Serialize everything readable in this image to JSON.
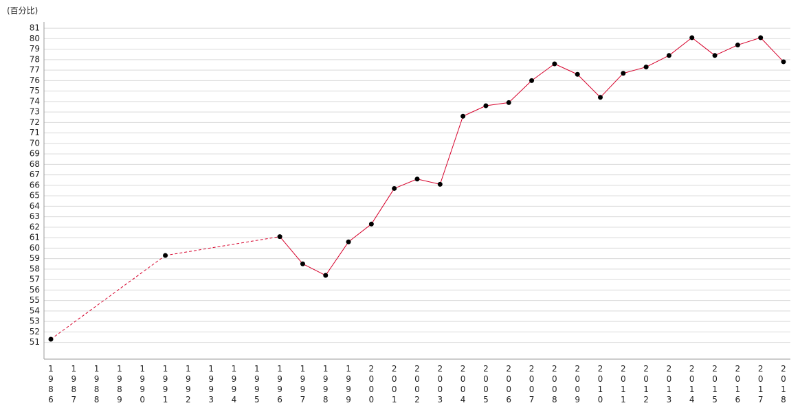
{
  "chart_data": {
    "type": "line",
    "y_label": "(百分比)",
    "categories": [
      "1986",
      "1987",
      "1988",
      "1989",
      "1990",
      "1991",
      "1992",
      "1993",
      "1994",
      "1995",
      "1996",
      "1997",
      "1998",
      "1999",
      "2000",
      "2001",
      "2002",
      "2003",
      "2004",
      "2005",
      "2006",
      "2007",
      "2008",
      "2009",
      "2010",
      "2011",
      "2012",
      "2013",
      "2014",
      "2015",
      "2016",
      "2017",
      "2018"
    ],
    "series": [
      {
        "color": "#d6002a",
        "values": [
          51.3,
          null,
          null,
          null,
          null,
          59.3,
          null,
          null,
          null,
          null,
          61.1,
          58.5,
          57.4,
          60.6,
          62.3,
          65.7,
          66.6,
          66.1,
          72.6,
          73.6,
          73.9,
          76.0,
          77.6,
          76.6,
          74.4,
          76.7,
          77.3,
          78.4,
          80.1,
          78.4,
          79.4,
          80.1,
          77.8
        ]
      }
    ],
    "ylim": [
      49.4,
      81.6
    ],
    "yticks": [
      51,
      52,
      53,
      54,
      55,
      56,
      57,
      58,
      59,
      60,
      61,
      62,
      63,
      64,
      65,
      66,
      67,
      68,
      69,
      70,
      71,
      72,
      73,
      74,
      75,
      76,
      77,
      78,
      79,
      80,
      81
    ],
    "grid": true
  }
}
